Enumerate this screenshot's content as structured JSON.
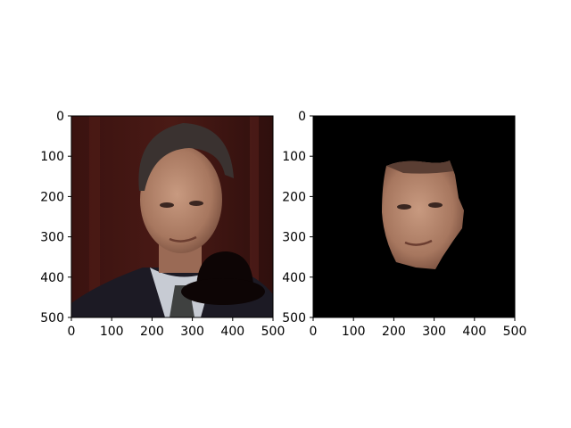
{
  "chart_data": [
    {
      "type": "image",
      "image_content": "photo of a man in a dark suit and tie against a dark red background, with a black bowler-hat shape pasted over the lower right corner",
      "xlim": [
        0,
        500
      ],
      "ylim": [
        500,
        0
      ],
      "xticks": [
        "0",
        "100",
        "200",
        "300",
        "400",
        "500"
      ],
      "yticks": [
        "0",
        "100",
        "200",
        "300",
        "400",
        "500"
      ],
      "grid": false
    },
    {
      "type": "image",
      "image_content": "segmented face region of the same man on a black background",
      "xlim": [
        0,
        500
      ],
      "ylim": [
        500,
        0
      ],
      "xticks": [
        "0",
        "100",
        "200",
        "300",
        "400",
        "500"
      ],
      "yticks": [
        "0",
        "100",
        "200",
        "300",
        "400",
        "500"
      ],
      "grid": false
    }
  ],
  "colors": {
    "background_left": "#3b1412",
    "background_right": "#000000",
    "skin": "#b07f66",
    "hair": "#3a3230",
    "suit": "#1c1a24",
    "hat": "#0d0505"
  }
}
